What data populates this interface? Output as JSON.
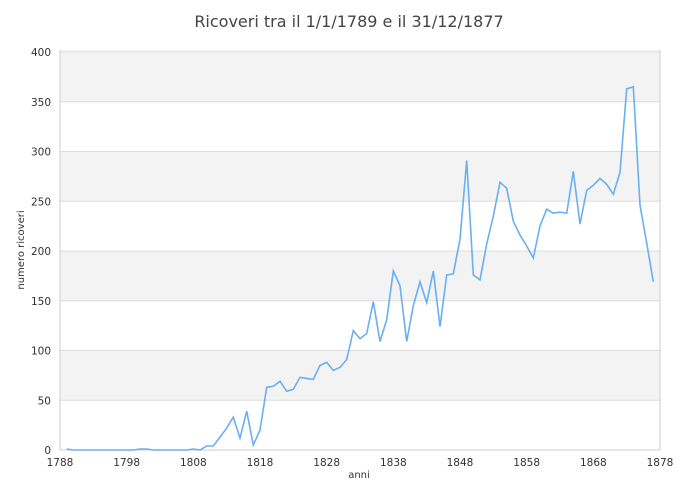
{
  "chart_data": {
    "type": "line",
    "title": "Ricoveri tra il 1/1/1789 e il 31/12/1877",
    "xlabel": "anni",
    "ylabel": "numero ricoveri",
    "xlim": [
      1788,
      1878
    ],
    "ylim": [
      0,
      400
    ],
    "xticks": [
      1788,
      1798,
      1808,
      1818,
      1828,
      1838,
      1848,
      1858,
      1868,
      1878
    ],
    "yticks": [
      0,
      50,
      100,
      150,
      200,
      250,
      300,
      350,
      400
    ],
    "grid": true,
    "band_colors": [
      "#ffffff",
      "#f3f3f3"
    ],
    "line_color": "#6aaff0",
    "x": [
      1789,
      1790,
      1791,
      1792,
      1793,
      1794,
      1795,
      1796,
      1797,
      1798,
      1799,
      1800,
      1801,
      1802,
      1803,
      1804,
      1805,
      1806,
      1807,
      1808,
      1809,
      1810,
      1811,
      1812,
      1813,
      1814,
      1815,
      1816,
      1817,
      1818,
      1819,
      1820,
      1821,
      1822,
      1823,
      1824,
      1825,
      1826,
      1827,
      1828,
      1829,
      1830,
      1831,
      1832,
      1833,
      1834,
      1835,
      1836,
      1837,
      1838,
      1839,
      1840,
      1841,
      1842,
      1843,
      1844,
      1845,
      1846,
      1847,
      1848,
      1849,
      1850,
      1851,
      1852,
      1853,
      1854,
      1855,
      1856,
      1857,
      1858,
      1859,
      1860,
      1861,
      1862,
      1863,
      1864,
      1865,
      1866,
      1867,
      1868,
      1869,
      1870,
      1871,
      1872,
      1873,
      1874,
      1875,
      1876,
      1877
    ],
    "values": [
      1,
      0,
      0,
      0,
      0,
      0,
      0,
      0,
      0,
      0,
      0,
      1,
      1,
      0,
      0,
      0,
      0,
      0,
      0,
      1,
      0,
      4,
      4,
      13,
      22,
      33,
      12,
      39,
      5,
      20,
      63,
      64,
      69,
      59,
      61,
      73,
      72,
      71,
      85,
      88,
      80,
      83,
      91,
      120,
      112,
      117,
      149,
      109,
      131,
      180,
      165,
      109,
      145,
      169,
      148,
      180,
      124,
      176,
      177,
      212,
      291,
      176,
      171,
      207,
      235,
      269,
      263,
      230,
      216,
      205,
      193,
      225,
      242,
      238,
      239,
      238,
      280,
      227,
      261,
      266,
      273,
      267,
      257,
      279,
      363,
      365,
      246,
      208,
      169
    ]
  }
}
